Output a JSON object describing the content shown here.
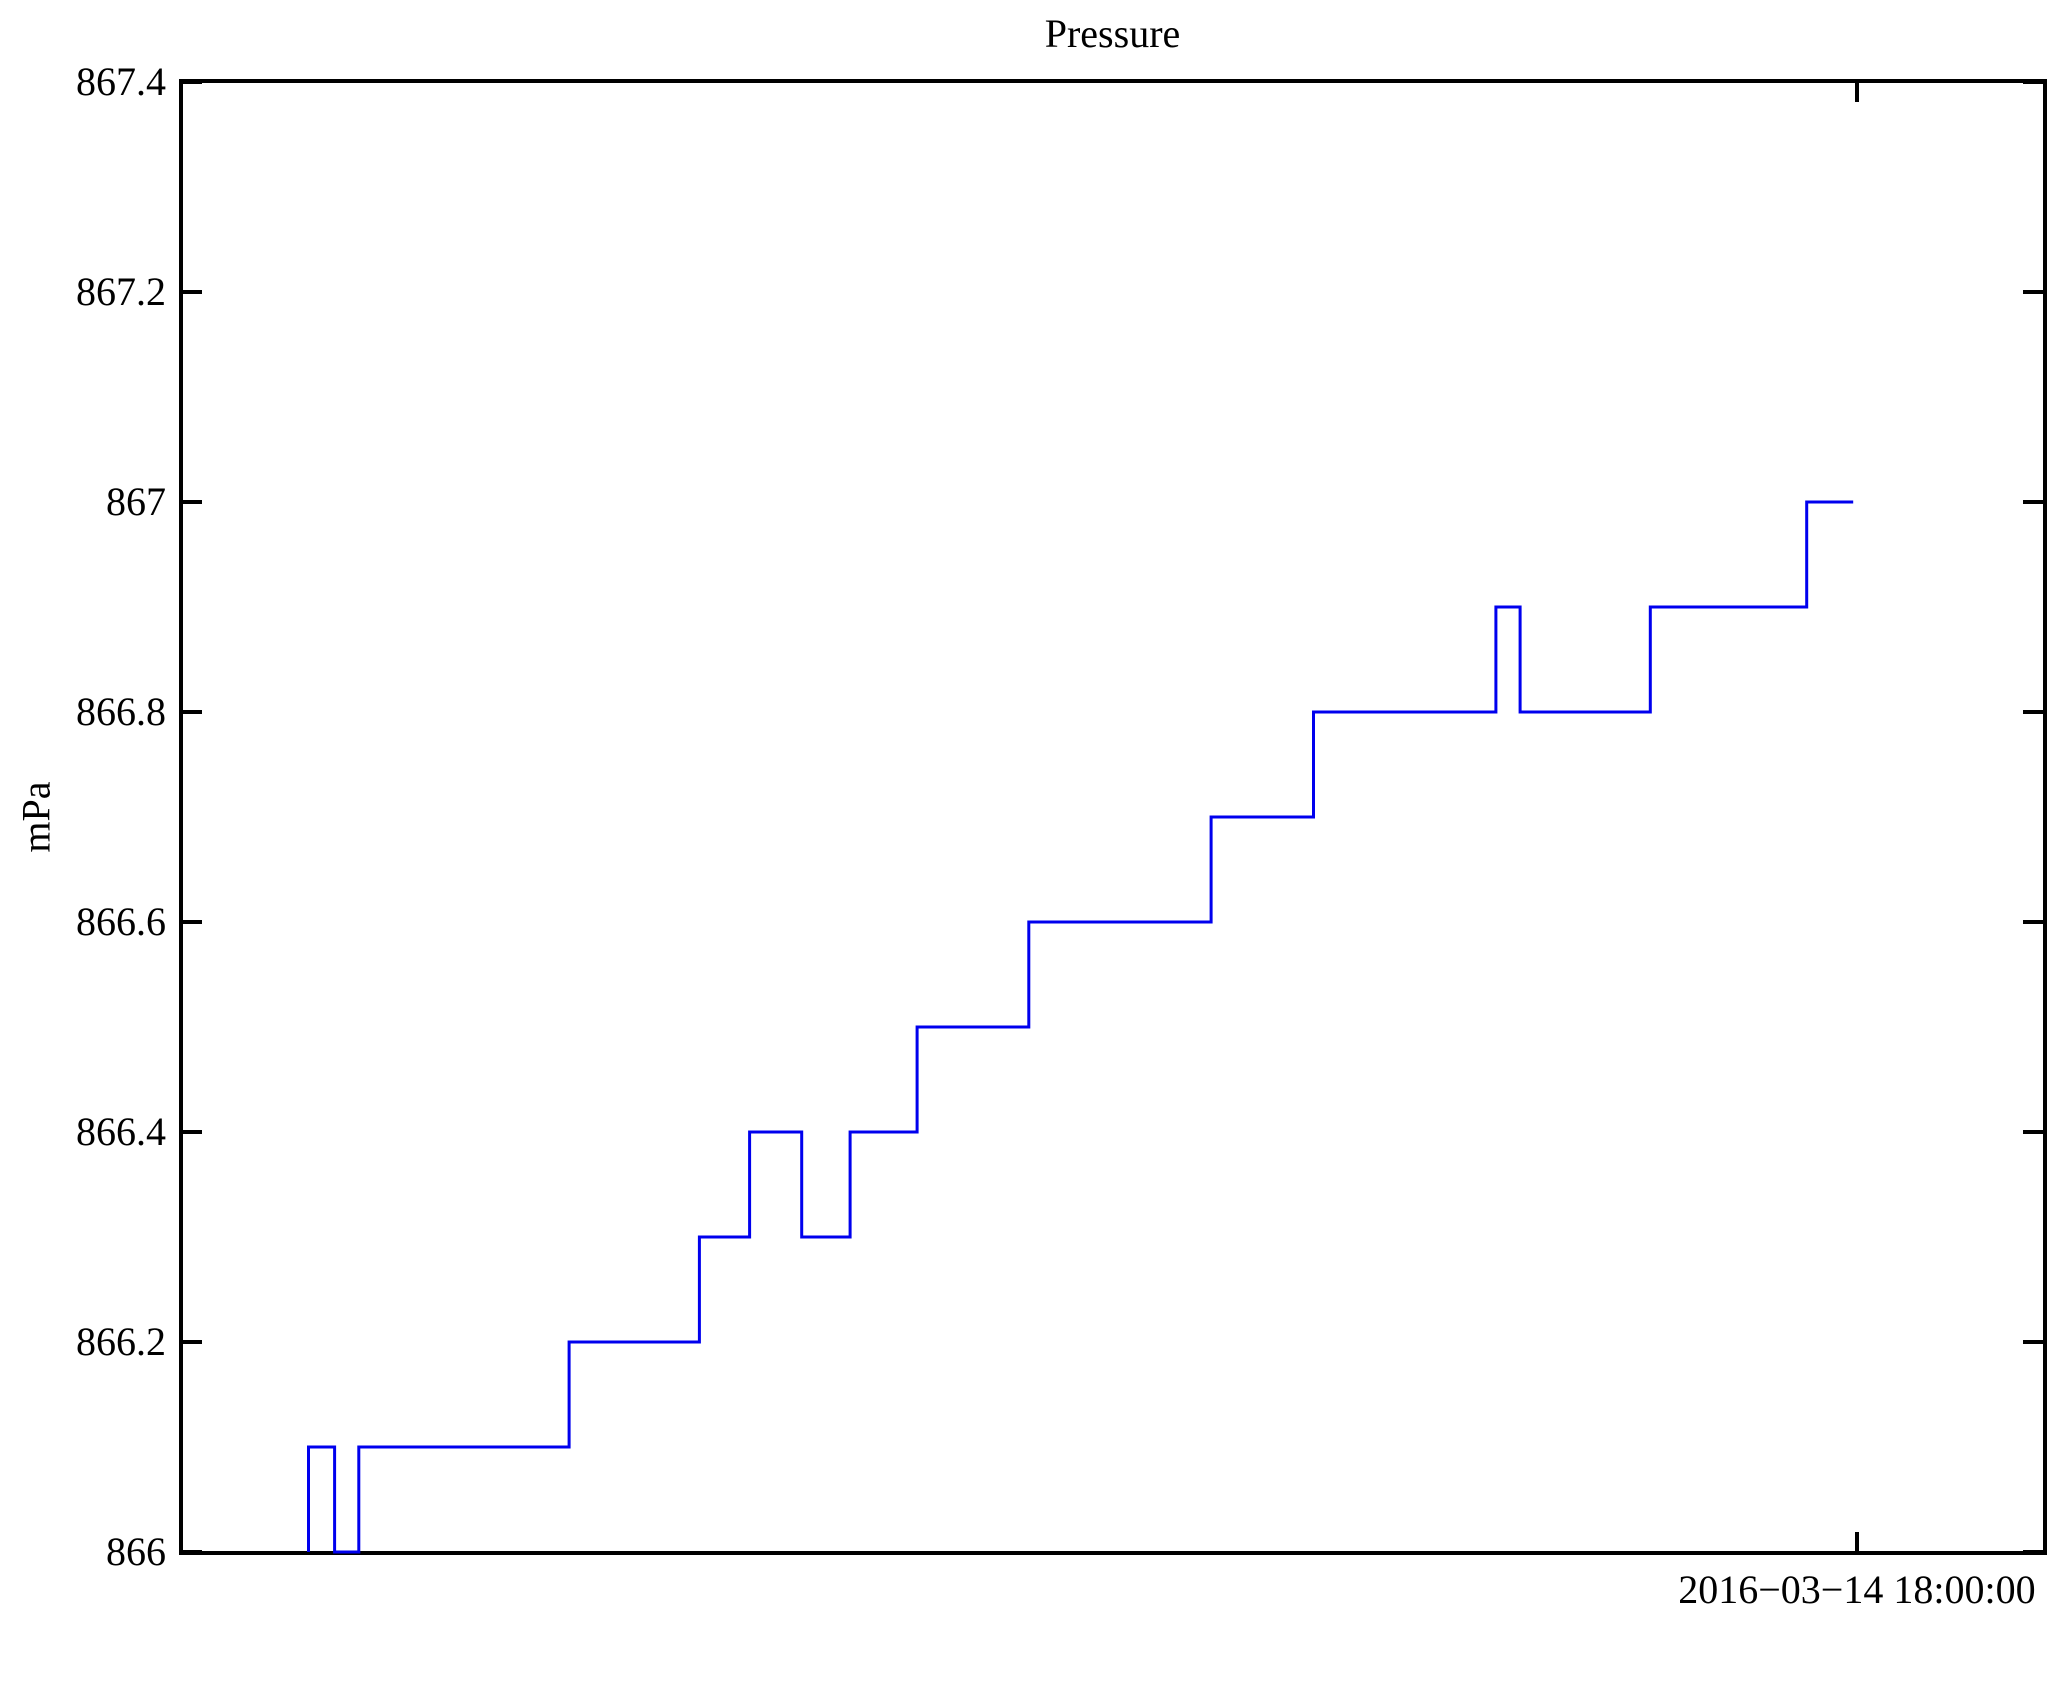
{
  "chart_data": {
    "type": "line",
    "line_style": "step",
    "title": "Pressure",
    "ylabel": "mPa",
    "xlabel": "",
    "ylim": [
      866,
      867.4
    ],
    "grid": "off",
    "legend": "none",
    "line_color": "#0000ee",
    "axis_color": "#000000",
    "background_color": "#ffffff",
    "x_axis_note": "time axis; only one tick is labeled; x positions are fractions of the plot width",
    "y_ticks": [
      {
        "value": 866,
        "label": "866"
      },
      {
        "value": 866.2,
        "label": "866.2"
      },
      {
        "value": 866.4,
        "label": "866.4"
      },
      {
        "value": 866.6,
        "label": "866.6"
      },
      {
        "value": 866.8,
        "label": "866.8"
      },
      {
        "value": 867,
        "label": "867"
      },
      {
        "value": 867.2,
        "label": "867.2"
      },
      {
        "value": 867.4,
        "label": "867.4"
      }
    ],
    "x_ticks": [
      {
        "pos": 0.9,
        "label": "2016−03−14 18:00:00"
      }
    ],
    "series": [
      {
        "name": "Pressure",
        "start": {
          "x": 0.068,
          "y": 866.0
        },
        "steps": [
          {
            "x0": 0.068,
            "x1": 0.082,
            "y": 866.1
          },
          {
            "x0": 0.082,
            "x1": 0.095,
            "y": 866.0
          },
          {
            "x0": 0.095,
            "x1": 0.208,
            "y": 866.1
          },
          {
            "x0": 0.208,
            "x1": 0.278,
            "y": 866.2
          },
          {
            "x0": 0.278,
            "x1": 0.305,
            "y": 866.3
          },
          {
            "x0": 0.305,
            "x1": 0.333,
            "y": 866.4
          },
          {
            "x0": 0.333,
            "x1": 0.359,
            "y": 866.3
          },
          {
            "x0": 0.359,
            "x1": 0.395,
            "y": 866.4
          },
          {
            "x0": 0.395,
            "x1": 0.455,
            "y": 866.5
          },
          {
            "x0": 0.455,
            "x1": 0.553,
            "y": 866.6
          },
          {
            "x0": 0.553,
            "x1": 0.608,
            "y": 866.7
          },
          {
            "x0": 0.608,
            "x1": 0.706,
            "y": 866.8
          },
          {
            "x0": 0.706,
            "x1": 0.719,
            "y": 866.9
          },
          {
            "x0": 0.719,
            "x1": 0.789,
            "y": 866.8
          },
          {
            "x0": 0.789,
            "x1": 0.873,
            "y": 866.9
          },
          {
            "x0": 0.873,
            "x1": 0.898,
            "y": 867.0
          }
        ]
      }
    ]
  }
}
